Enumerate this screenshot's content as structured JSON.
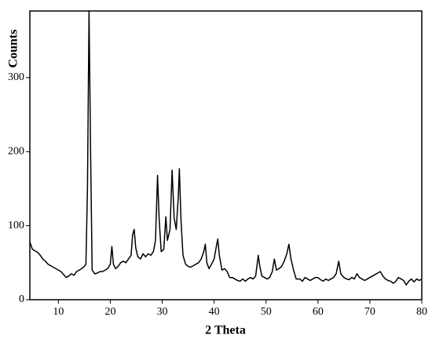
{
  "chart_data": {
    "type": "line",
    "xlabel": "2 Theta",
    "ylabel": "Counts",
    "xlim": [
      4.5,
      80
    ],
    "ylim": [
      0,
      390
    ],
    "xticks": [
      10,
      20,
      30,
      40,
      50,
      60,
      70,
      80
    ],
    "yticks": [
      0,
      100,
      200,
      300
    ],
    "series": [
      {
        "color": "#000000",
        "x": [
          4.5,
          5,
          5.5,
          6,
          6.5,
          7,
          7.5,
          8,
          8.5,
          9,
          9.5,
          10,
          10.5,
          11,
          11.5,
          12,
          12.5,
          13,
          13.5,
          14,
          14.5,
          15,
          15.3,
          15.6,
          15.9,
          16.2,
          16.5,
          17,
          17.5,
          18,
          18.5,
          19,
          19.5,
          20,
          20.3,
          20.6,
          21,
          21.5,
          22,
          22.5,
          23,
          23.5,
          24,
          24.3,
          24.6,
          24.9,
          25.3,
          25.8,
          26.3,
          26.8,
          27.3,
          27.8,
          28.3,
          28.7,
          29.1,
          29.4,
          29.8,
          30.3,
          30.7,
          31,
          31.5,
          31.9,
          32.3,
          32.7,
          33.1,
          33.3,
          33.6,
          34,
          34.5,
          35,
          35.5,
          36,
          36.5,
          37,
          37.5,
          38,
          38.3,
          38.6,
          39,
          39.5,
          40,
          40.5,
          40.7,
          41,
          41.5,
          42,
          42.5,
          43,
          43.5,
          44,
          44.5,
          45,
          45.5,
          46,
          46.5,
          47,
          47.5,
          48,
          48.5,
          48.8,
          49.2,
          49.7,
          50.2,
          50.7,
          51.2,
          51.6,
          52,
          52.5,
          53,
          53.5,
          54,
          54.4,
          54.8,
          55.3,
          55.8,
          56.5,
          57,
          57.5,
          58,
          58.5,
          59,
          59.5,
          60,
          60.5,
          61,
          61.5,
          62,
          62.5,
          63,
          63.5,
          64,
          64.4,
          65,
          65.5,
          66,
          66.5,
          67,
          67.5,
          68,
          68.5,
          69,
          69.5,
          70,
          70.5,
          71,
          71.5,
          72,
          72.5,
          73,
          73.5,
          74,
          74.5,
          75,
          75.5,
          76,
          76.5,
          77,
          77.5,
          78,
          78.5,
          79,
          79.5,
          80
        ],
        "values": [
          78,
          68,
          66,
          64,
          60,
          55,
          52,
          48,
          46,
          44,
          42,
          40,
          38,
          34,
          30,
          32,
          35,
          33,
          38,
          40,
          42,
          45,
          48,
          150,
          390,
          200,
          40,
          35,
          36,
          38,
          38,
          40,
          42,
          48,
          72,
          48,
          42,
          45,
          50,
          52,
          50,
          55,
          60,
          88,
          95,
          70,
          58,
          55,
          62,
          58,
          62,
          60,
          65,
          80,
          168,
          110,
          65,
          68,
          112,
          80,
          95,
          175,
          110,
          95,
          140,
          177,
          110,
          60,
          48,
          45,
          44,
          46,
          48,
          50,
          55,
          65,
          75,
          50,
          42,
          48,
          55,
          75,
          82,
          60,
          40,
          42,
          38,
          30,
          30,
          28,
          26,
          25,
          28,
          25,
          28,
          30,
          28,
          32,
          60,
          45,
          32,
          30,
          28,
          30,
          38,
          55,
          40,
          42,
          45,
          52,
          62,
          75,
          55,
          40,
          28,
          28,
          25,
          30,
          28,
          26,
          28,
          30,
          30,
          27,
          25,
          28,
          26,
          28,
          30,
          35,
          52,
          35,
          30,
          28,
          27,
          30,
          28,
          35,
          30,
          28,
          26,
          28,
          30,
          32,
          34,
          36,
          38,
          32,
          28,
          26,
          25,
          22,
          25,
          30,
          28,
          26,
          20,
          25,
          28,
          24,
          28,
          26,
          28
        ]
      }
    ]
  }
}
